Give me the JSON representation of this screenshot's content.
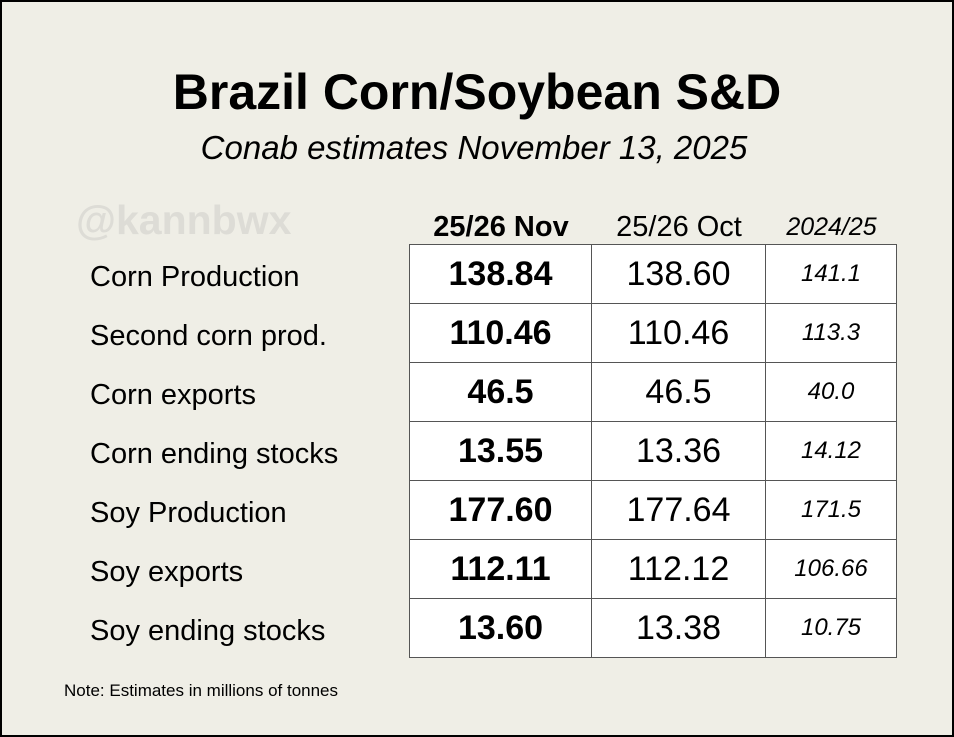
{
  "chart_data": {
    "type": "table",
    "title": "Brazil Corn/Soybean S&D",
    "subtitle": "Conab estimates November 13, 2025",
    "watermark": "@kannbwx",
    "columns": [
      "25/26 Nov",
      "25/26 Oct",
      "2024/25"
    ],
    "rows": [
      {
        "label": "Corn Production",
        "values": [
          "138.84",
          "138.60",
          "141.1"
        ]
      },
      {
        "label": "Second corn prod.",
        "values": [
          "110.46",
          "110.46",
          "113.3"
        ]
      },
      {
        "label": "Corn exports",
        "values": [
          "46.5",
          "46.5",
          "40.0"
        ]
      },
      {
        "label": "Corn ending stocks",
        "values": [
          "13.55",
          "13.36",
          "14.12"
        ]
      },
      {
        "label": "Soy Production",
        "values": [
          "177.60",
          "177.64",
          "171.5"
        ]
      },
      {
        "label": "Soy exports",
        "values": [
          "112.11",
          "112.12",
          "106.66"
        ]
      },
      {
        "label": "Soy ending stocks",
        "values": [
          "13.60",
          "13.38",
          "10.75"
        ]
      }
    ],
    "note": "Note: Estimates in millions of tonnes"
  }
}
